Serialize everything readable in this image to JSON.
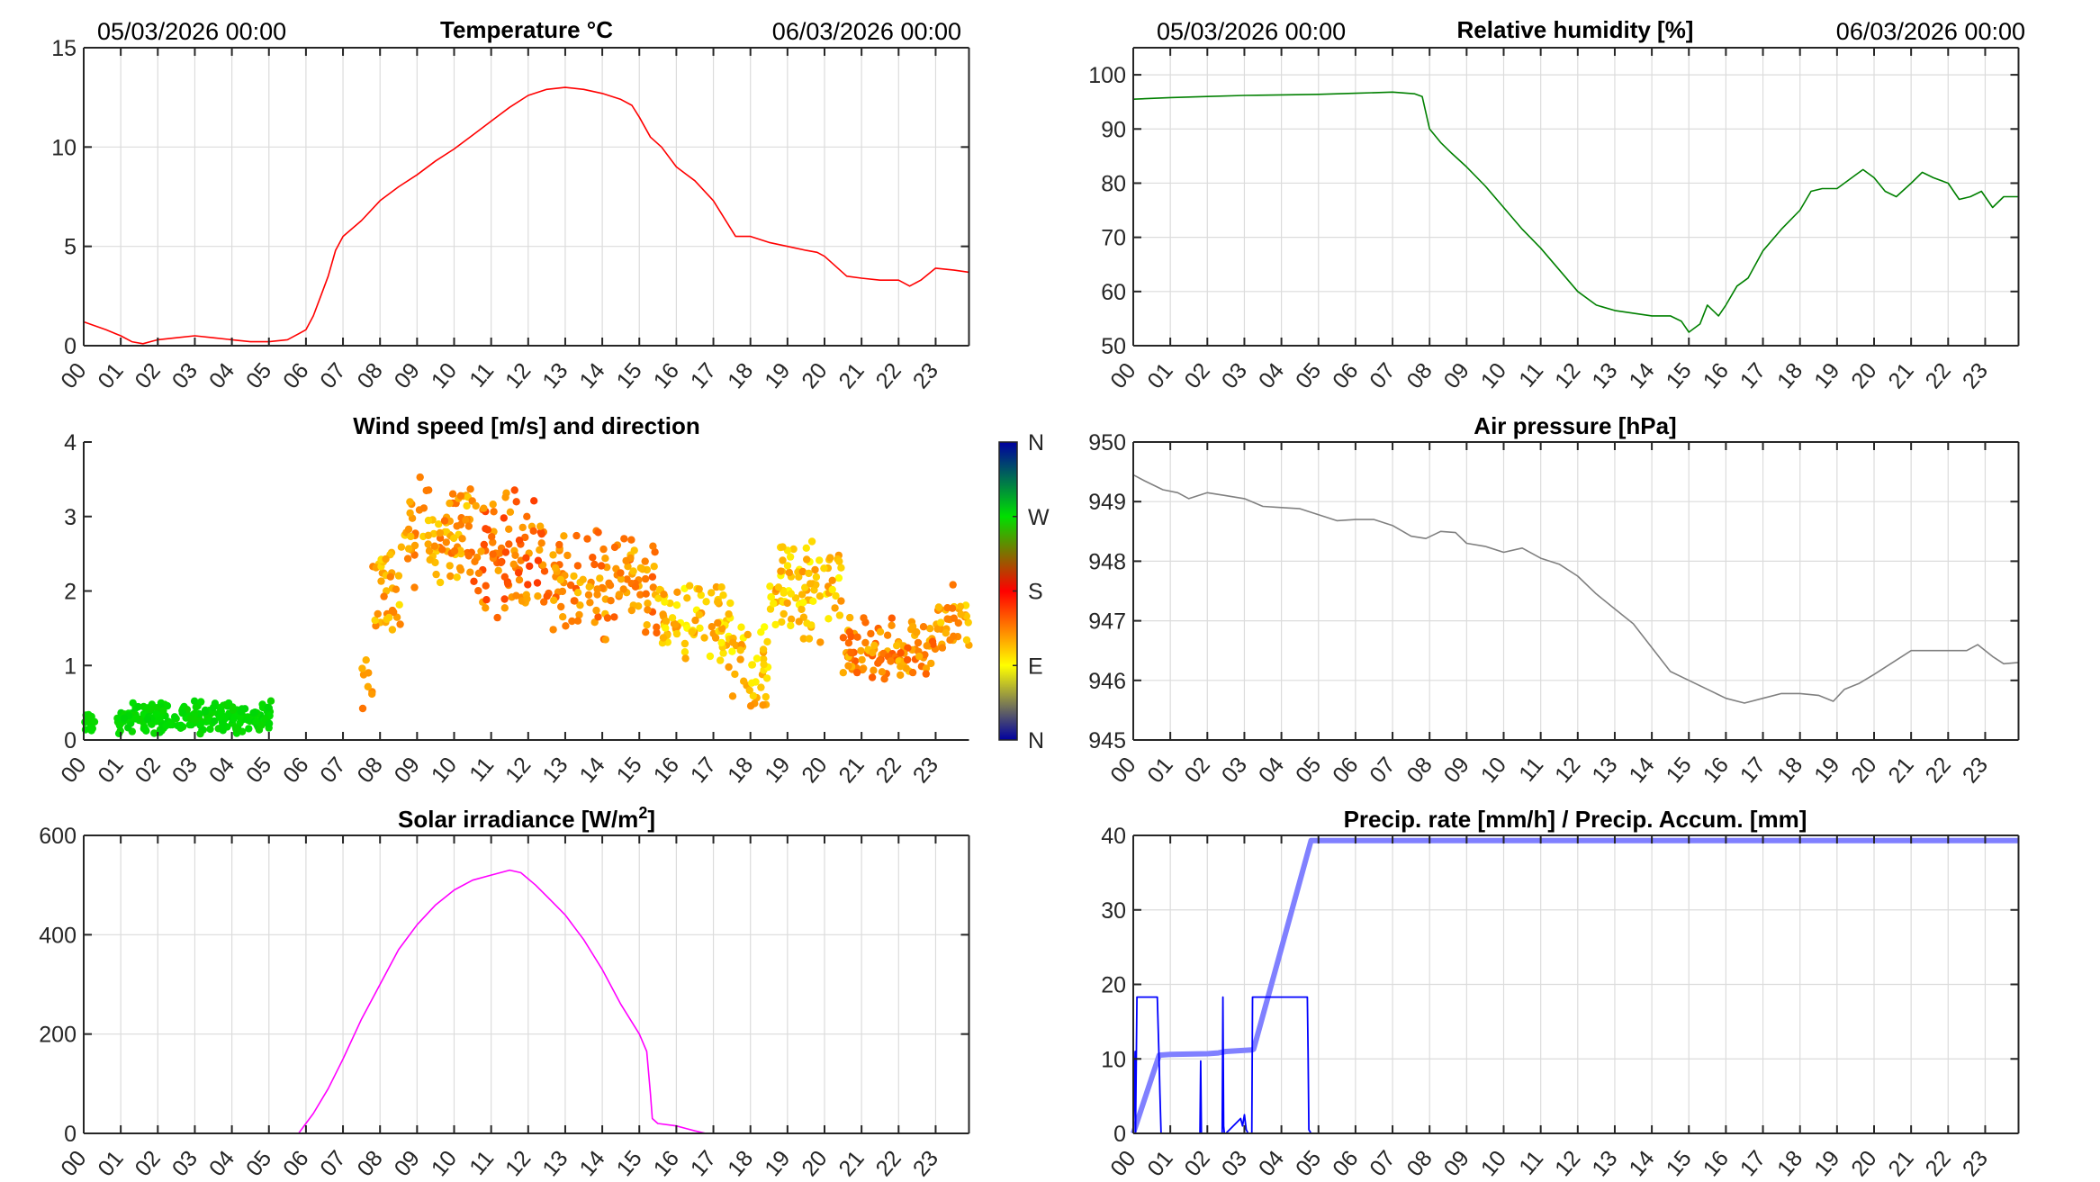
{
  "header": {
    "start_date": "05/03/2026 00:00",
    "end_date": "06/03/2026 00:00"
  },
  "hour_labels": [
    "00",
    "01",
    "02",
    "03",
    "04",
    "05",
    "06",
    "07",
    "08",
    "09",
    "10",
    "11",
    "12",
    "13",
    "14",
    "15",
    "16",
    "17",
    "18",
    "19",
    "20",
    "21",
    "22",
    "23"
  ],
  "chart_data": [
    {
      "id": "temperature",
      "type": "line",
      "title": "Temperature °C",
      "xlabel": "",
      "ylabel": "",
      "xlim": [
        0,
        23.9
      ],
      "ylim": [
        0,
        15
      ],
      "yticks": [
        0,
        5,
        10,
        15
      ],
      "grid": true,
      "color": "#ff0000",
      "x": [
        0,
        0.3,
        0.6,
        1.0,
        1.3,
        1.6,
        2.0,
        2.5,
        3.0,
        3.5,
        4.0,
        4.5,
        5.0,
        5.5,
        5.8,
        6.0,
        6.2,
        6.4,
        6.6,
        6.8,
        7.0,
        7.5,
        8.0,
        8.5,
        9.0,
        9.5,
        10.0,
        10.5,
        11.0,
        11.5,
        12.0,
        12.5,
        13.0,
        13.5,
        14.0,
        14.5,
        14.8,
        15.0,
        15.3,
        15.6,
        16.0,
        16.5,
        17.0,
        17.3,
        17.6,
        18.0,
        18.5,
        19.0,
        19.5,
        19.8,
        20.0,
        20.3,
        20.6,
        21.0,
        21.5,
        22.0,
        22.3,
        22.6,
        23.0,
        23.5,
        23.9
      ],
      "values": [
        1.2,
        1.0,
        0.8,
        0.5,
        0.2,
        0.1,
        0.3,
        0.4,
        0.5,
        0.4,
        0.3,
        0.2,
        0.2,
        0.3,
        0.6,
        0.8,
        1.5,
        2.5,
        3.5,
        4.8,
        5.5,
        6.3,
        7.3,
        8.0,
        8.6,
        9.3,
        9.9,
        10.6,
        11.3,
        12.0,
        12.6,
        12.9,
        13.0,
        12.9,
        12.7,
        12.4,
        12.1,
        11.5,
        10.5,
        10.0,
        9.0,
        8.3,
        7.3,
        6.4,
        5.5,
        5.5,
        5.2,
        5.0,
        4.8,
        4.7,
        4.5,
        4.0,
        3.5,
        3.4,
        3.3,
        3.3,
        3.0,
        3.3,
        3.9,
        3.8,
        3.7
      ]
    },
    {
      "id": "humidity",
      "type": "line",
      "title": "Relative humidity [%]",
      "xlabel": "",
      "ylabel": "",
      "xlim": [
        0,
        23.9
      ],
      "ylim": [
        50,
        105
      ],
      "yticks": [
        50,
        60,
        70,
        80,
        90,
        100
      ],
      "grid": true,
      "color": "#008000",
      "x": [
        0,
        1,
        2,
        3,
        4,
        5,
        6,
        7.0,
        7.6,
        7.8,
        8.0,
        8.3,
        8.6,
        9.0,
        9.5,
        10.0,
        10.5,
        11.0,
        11.5,
        12.0,
        12.5,
        13.0,
        13.5,
        14.0,
        14.5,
        14.8,
        15.0,
        15.3,
        15.5,
        15.8,
        16.0,
        16.3,
        16.6,
        17.0,
        17.5,
        18.0,
        18.3,
        18.6,
        19.0,
        19.5,
        19.7,
        20.0,
        20.3,
        20.6,
        21.0,
        21.3,
        21.6,
        22.0,
        22.3,
        22.6,
        22.9,
        23.2,
        23.5,
        23.9
      ],
      "values": [
        95.5,
        95.8,
        96.0,
        96.2,
        96.3,
        96.4,
        96.6,
        96.8,
        96.5,
        96.0,
        90.0,
        87.5,
        85.5,
        83.0,
        79.5,
        75.5,
        71.5,
        68.0,
        64.0,
        60.0,
        57.5,
        56.5,
        56.0,
        55.5,
        55.5,
        54.5,
        52.5,
        54.0,
        57.5,
        55.5,
        57.5,
        61.0,
        62.5,
        67.5,
        71.5,
        75.0,
        78.5,
        79.0,
        79.0,
        81.5,
        82.5,
        81.0,
        78.5,
        77.5,
        80.0,
        82.0,
        81.0,
        80.0,
        77.0,
        77.5,
        78.5,
        75.5,
        77.5,
        77.5
      ]
    },
    {
      "id": "wind",
      "type": "scatter",
      "title": "Wind speed [m/s] and direction",
      "xlabel": "",
      "ylabel": "",
      "xlim": [
        0,
        23.9
      ],
      "ylim": [
        0,
        4
      ],
      "yticks": [
        0,
        1,
        2,
        3,
        4
      ],
      "grid": false,
      "colorbar": {
        "labels": [
          "N",
          "E",
          "S",
          "W",
          "N"
        ],
        "stops": [
          "#0000a0",
          "#ffff00",
          "#ff0000",
          "#00e000",
          "#0000a0"
        ],
        "range_deg": [
          0,
          360
        ]
      },
      "clusters": [
        {
          "x_range": [
            0.0,
            0.3
          ],
          "speed_mean": 0.2,
          "speed_spread": 0.2,
          "direction_deg": 270,
          "count": 14
        },
        {
          "x_range": [
            0.9,
            5.1
          ],
          "speed_mean": 0.3,
          "speed_spread": 0.25,
          "direction_deg": 270,
          "count": 220
        },
        {
          "x_range": [
            7.5,
            7.8
          ],
          "speed_mean": 0.8,
          "speed_spread": 0.5,
          "direction_deg": 120,
          "count": 8
        },
        {
          "x_range": [
            7.8,
            8.6
          ],
          "speed_mean": 2.0,
          "speed_spread": 0.7,
          "direction_deg": 120,
          "count": 35
        },
        {
          "x_range": [
            8.6,
            10.5
          ],
          "speed_mean": 2.8,
          "speed_spread": 0.8,
          "direction_deg": 125,
          "count": 90
        },
        {
          "x_range": [
            10.5,
            12.5
          ],
          "speed_mean": 2.5,
          "speed_spread": 1.0,
          "direction_deg": 140,
          "count": 90
        },
        {
          "x_range": [
            12.5,
            15.5
          ],
          "speed_mean": 2.1,
          "speed_spread": 0.8,
          "direction_deg": 130,
          "count": 120
        },
        {
          "x_range": [
            15.5,
            17.5
          ],
          "speed_mean": 1.5,
          "speed_spread": 0.7,
          "direction_deg": 110,
          "count": 80
        },
        {
          "x_range": [
            17.5,
            18.5
          ],
          "speed_mean": 0.9,
          "speed_spread": 0.7,
          "direction_deg": 110,
          "count": 40
        },
        {
          "x_range": [
            18.5,
            20.5
          ],
          "speed_mean": 2.0,
          "speed_spread": 0.8,
          "direction_deg": 110,
          "count": 90
        },
        {
          "x_range": [
            20.5,
            23.0
          ],
          "speed_mean": 1.2,
          "speed_spread": 0.5,
          "direction_deg": 130,
          "count": 110
        },
        {
          "x_range": [
            23.0,
            23.9
          ],
          "speed_mean": 1.6,
          "speed_spread": 0.6,
          "direction_deg": 120,
          "count": 35
        }
      ]
    },
    {
      "id": "pressure",
      "type": "line",
      "title": "Air pressure [hPa]",
      "xlabel": "",
      "ylabel": "",
      "xlim": [
        0,
        23.9
      ],
      "ylim": [
        945,
        950
      ],
      "yticks": [
        945,
        946,
        947,
        948,
        949,
        950
      ],
      "grid": true,
      "color": "#808080",
      "x": [
        0,
        0.3,
        0.8,
        1.2,
        1.5,
        2.0,
        2.5,
        3.0,
        3.5,
        4.0,
        4.5,
        5.0,
        5.5,
        6.0,
        6.5,
        7.0,
        7.5,
        7.9,
        8.3,
        8.7,
        9.0,
        9.5,
        10.0,
        10.5,
        11.0,
        11.5,
        12.0,
        12.5,
        13.0,
        13.5,
        14.0,
        14.5,
        15.0,
        15.5,
        16.0,
        16.5,
        17.0,
        17.5,
        18.0,
        18.5,
        18.9,
        19.2,
        19.6,
        20.0,
        20.5,
        21.0,
        21.5,
        22.0,
        22.5,
        22.8,
        23.2,
        23.5,
        23.9
      ],
      "values": [
        949.45,
        949.35,
        949.2,
        949.15,
        949.05,
        949.15,
        949.1,
        949.05,
        948.92,
        948.9,
        948.88,
        948.78,
        948.68,
        948.7,
        948.7,
        948.6,
        948.42,
        948.38,
        948.5,
        948.48,
        948.3,
        948.25,
        948.15,
        948.22,
        948.05,
        947.95,
        947.75,
        947.45,
        947.2,
        946.95,
        946.55,
        946.15,
        946.0,
        945.85,
        945.7,
        945.62,
        945.7,
        945.78,
        945.78,
        945.75,
        945.65,
        945.85,
        945.95,
        946.1,
        946.3,
        946.5,
        946.5,
        946.5,
        946.5,
        946.6,
        946.4,
        946.28,
        946.3
      ]
    },
    {
      "id": "solar",
      "type": "line",
      "title": "Solar irradiance [W/m²]",
      "title_main": "Solar irradiance [W/m",
      "title_sup": "2",
      "title_end": "]",
      "xlabel": "",
      "ylabel": "",
      "xlim": [
        0,
        23.9
      ],
      "ylim": [
        0,
        600
      ],
      "yticks": [
        0,
        200,
        400,
        600
      ],
      "grid": true,
      "color": "#ff00ff",
      "x": [
        0,
        5.8,
        6.2,
        6.6,
        7.0,
        7.5,
        8.0,
        8.5,
        9.0,
        9.5,
        10.0,
        10.5,
        11.0,
        11.5,
        11.8,
        12.2,
        12.6,
        13.0,
        13.5,
        14.0,
        14.5,
        15.0,
        15.2,
        15.3,
        15.35,
        15.5,
        16.0,
        16.5,
        16.8,
        23.9
      ],
      "values": [
        0,
        0,
        40,
        90,
        150,
        230,
        300,
        370,
        420,
        460,
        490,
        510,
        520,
        530,
        525,
        500,
        470,
        440,
        390,
        330,
        260,
        200,
        165,
        80,
        30,
        20,
        15,
        5,
        0,
        0
      ]
    },
    {
      "id": "precipitation",
      "type": "line",
      "title": "Precip. rate [mm/h] / Precip. Accum. [mm]",
      "xlabel": "",
      "ylabel": "",
      "xlim": [
        0,
        23.9
      ],
      "ylim": [
        0,
        40
      ],
      "yticks": [
        0,
        10,
        20,
        30,
        40
      ],
      "grid": true,
      "series": [
        {
          "name": "Precip. rate [mm/h]",
          "color": "#0000ff",
          "x": [
            0,
            0.05,
            0.06,
            0.1,
            0.15,
            0.2,
            0.65,
            0.7,
            0.72,
            0.75,
            1.8,
            1.82,
            1.84,
            2.4,
            2.42,
            2.44,
            2.46,
            2.5,
            2.9,
            2.95,
            3.0,
            3.05,
            3.1,
            3.2,
            3.22,
            3.24,
            4.7,
            4.72,
            4.74,
            4.8,
            4.85,
            23.9
          ],
          "values": [
            0,
            11,
            0,
            18.3,
            18.3,
            18.3,
            18.3,
            9.5,
            5.5,
            0,
            0,
            9.7,
            0,
            0,
            18.3,
            1,
            0,
            0,
            2,
            1,
            2.5,
            0.5,
            0,
            0,
            18.3,
            18.3,
            18.3,
            11,
            0.5,
            0,
            0,
            0
          ]
        },
        {
          "name": "Precip. Accum. [mm]",
          "color": "#8080ff",
          "x": [
            0,
            0.7,
            1.0,
            2.0,
            2.3,
            2.5,
            3.2,
            3.25,
            4.8,
            23.9
          ],
          "values": [
            0,
            10.5,
            10.6,
            10.7,
            10.8,
            11.0,
            11.2,
            11.3,
            39.3,
            39.3
          ]
        }
      ]
    }
  ]
}
